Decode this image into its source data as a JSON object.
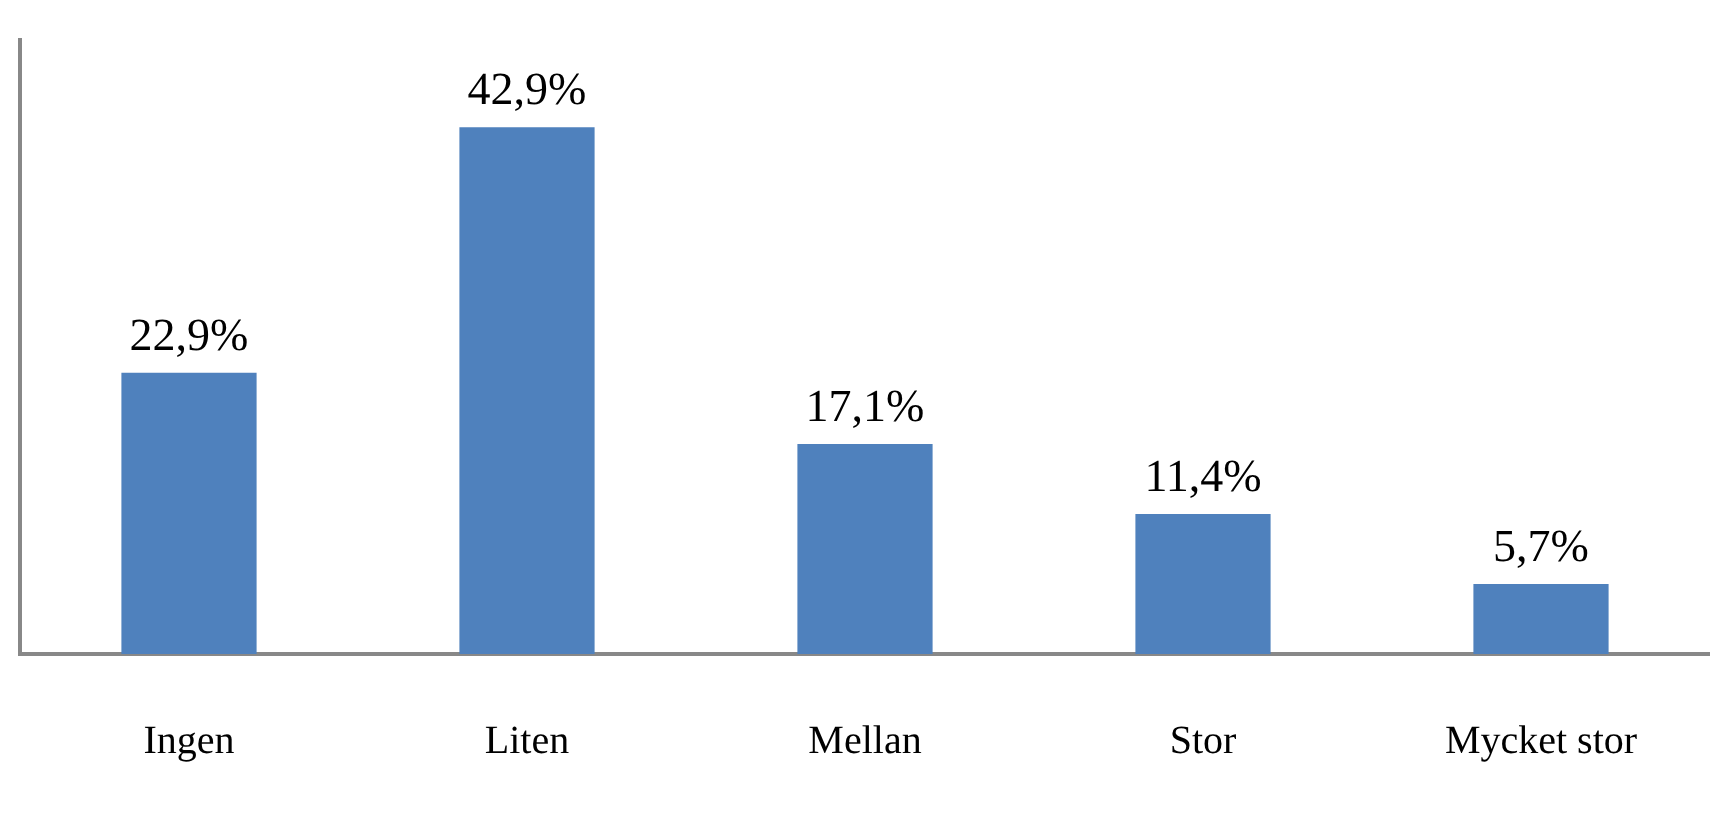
{
  "chart_data": {
    "type": "bar",
    "categories": [
      "Ingen",
      "Liten",
      "Mellan",
      "Stor",
      "Mycket stor"
    ],
    "values": [
      22.9,
      42.9,
      17.1,
      11.4,
      5.7
    ],
    "value_labels": [
      "22,9%",
      "42,9%",
      "17,1%",
      "11,4%",
      "5,7%"
    ],
    "color": "#4f81bd",
    "ylim": [
      0,
      50
    ],
    "tick_labels": "x",
    "grid": false,
    "legend": false
  }
}
